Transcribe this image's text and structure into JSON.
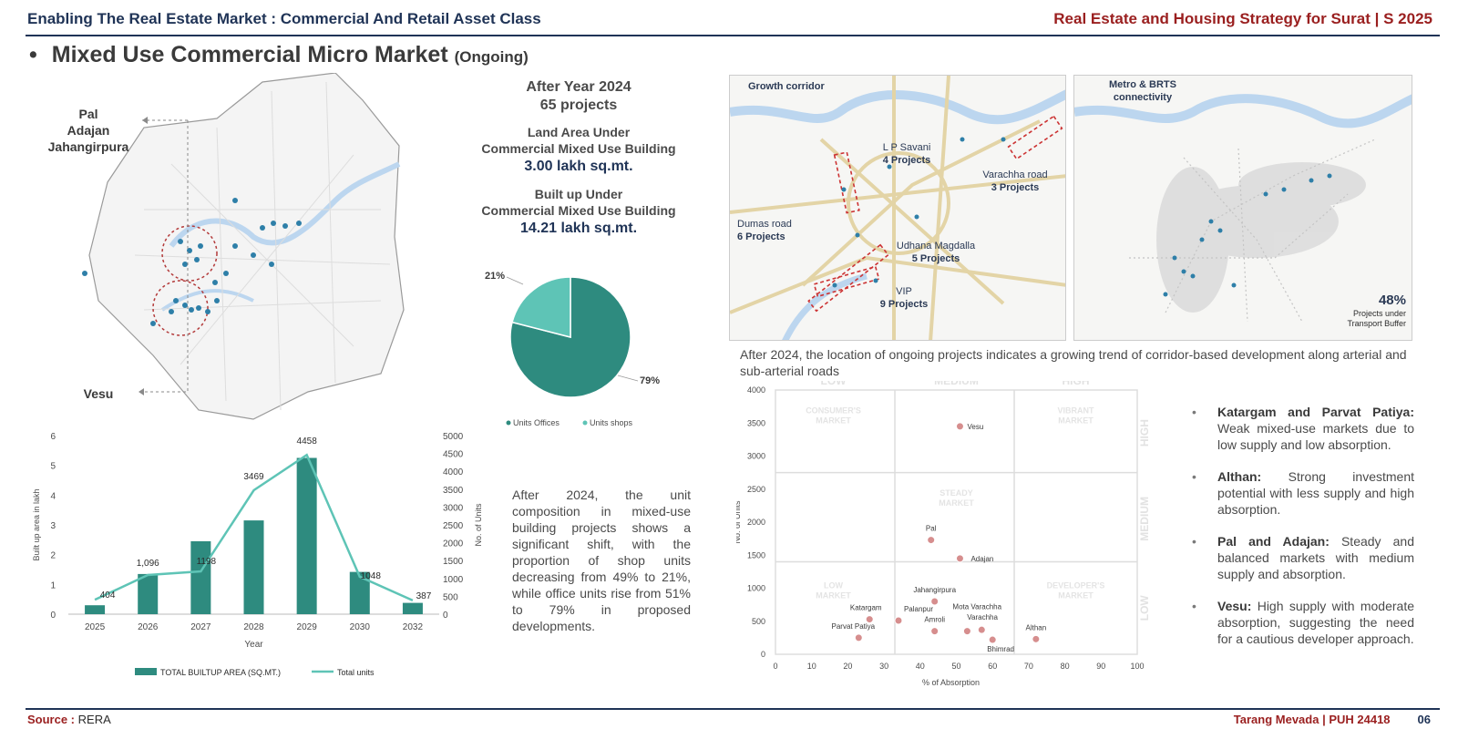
{
  "header": {
    "left_title": "Enabling The Real Estate Market : Commercial And Retail Asset Class",
    "right_title": "Real Estate and Housing Strategy for Surat | S 2025"
  },
  "page_title": {
    "bullet": "•",
    "main": "Mixed Use Commercial Micro Market",
    "sub": "(Ongoing)"
  },
  "map": {
    "label_top": [
      "Pal",
      "Adajan",
      "Jahangirpura"
    ],
    "label_bottom": "Vesu"
  },
  "stats": {
    "heading": "After Year 2024",
    "projects": "65 projects",
    "land_label_1": "Land Area Under",
    "land_label_2": "Commercial Mixed Use Building",
    "land_value": "3.00 lakh sq.mt.",
    "builtup_label_1": "Built up Under",
    "builtup_label_2": "Commercial Mixed Use Building",
    "builtup_value": "14.21 lakh sq.mt."
  },
  "unit_text": "After 2024, the unit composition in mixed-use building projects shows a significant shift, with the proportion of shop units decreasing from 49% to 21%, while office units rise from 51% to 79% in proposed developments.",
  "corridor_map": {
    "title": "Growth corridor",
    "labels": [
      {
        "name": "L P Savani",
        "projects": "4 Projects"
      },
      {
        "name": "Varachha road",
        "projects": "3 Projects"
      },
      {
        "name": "Dumas road",
        "projects": "6 Projects"
      },
      {
        "name": "Udhana Magdalla",
        "projects": "5 Projects"
      },
      {
        "name": "VIP",
        "projects": "9 Projects"
      }
    ]
  },
  "metro_map": {
    "title_1": "Metro & BRTS",
    "title_2": "connectivity",
    "stat_value": "48%",
    "stat_label_1": "Projects under",
    "stat_label_2": "Transport Buffer"
  },
  "corridor_text": "After 2024, the location of ongoing projects indicates a growing trend of corridor-based development along arterial and sub-arterial roads",
  "bullets": [
    {
      "head": "Katargam and Parvat Patiya:",
      "body": "Weak mixed-use markets due to low supply and low absorption."
    },
    {
      "head": "Althan:",
      "body": "Strong investment potential with less supply and high absorption."
    },
    {
      "head": "Pal and Adajan:",
      "body": "Steady and balanced markets with medium supply and absorption."
    },
    {
      "head": "Vesu:",
      "body": "High supply with moderate absorption, suggesting the need for a cautious developer approach."
    }
  ],
  "footer": {
    "source_label": "Source :",
    "source_value": "RERA",
    "author": "Tarang Mevada | PUH 24418",
    "page": "06"
  },
  "colors": {
    "teal_dark": "#2e8b7f",
    "teal_light": "#5ec4b6",
    "navy": "#1f3356",
    "maroon": "#9a1f1f",
    "marker": "#d68e8e"
  },
  "chart_data": [
    {
      "type": "pie",
      "labels": [
        "Units Offices",
        "Units shops"
      ],
      "values": [
        79,
        21
      ],
      "value_labels": [
        "79%",
        "21%"
      ],
      "colors": [
        "#2e8b7f",
        "#5ec4b6"
      ],
      "legend": "bottom"
    },
    {
      "type": "bar",
      "categories": [
        "2025",
        "2026",
        "2027",
        "2028",
        "2029",
        "2030",
        "2032"
      ],
      "series": [
        {
          "name": "TOTAL BUILTUP AREA (SQ.MT.)",
          "type": "bar",
          "axis": "left",
          "values": [
            0.3,
            1.35,
            2.45,
            3.15,
            5.25,
            1.42,
            0.38
          ]
        },
        {
          "name": "Total units",
          "type": "line",
          "axis": "right",
          "values": [
            404,
            1096,
            1198,
            3469,
            4458,
            1048,
            387
          ]
        }
      ],
      "line_labels": [
        "404",
        "1,096",
        "1198",
        "3469",
        "4458",
        "1048",
        "387"
      ],
      "xlabel": "Year",
      "ylabel": "Built up area in lakh",
      "y2label": "No. of Units",
      "ylim": [
        0,
        6
      ],
      "y2lim": [
        0,
        5000
      ],
      "yticks": [
        "0",
        "1",
        "2",
        "3",
        "4",
        "5",
        "6"
      ],
      "y2ticks": [
        "0",
        "500",
        "1000",
        "1500",
        "2000",
        "2500",
        "3000",
        "3500",
        "4000",
        "4500",
        "5000"
      ],
      "legend": "bottom"
    },
    {
      "type": "scatter",
      "xlabel": "% of Absorption",
      "ylabel": "No. of Units",
      "xlim": [
        0,
        100
      ],
      "ylim": [
        0,
        4000
      ],
      "xticks": [
        "0",
        "10",
        "20",
        "30",
        "40",
        "50",
        "60",
        "70",
        "80",
        "90",
        "100"
      ],
      "yticks": [
        "0",
        "500",
        "1000",
        "1500",
        "2000",
        "2500",
        "3000",
        "3500",
        "4000"
      ],
      "points": [
        {
          "label": "Vesu",
          "x": 51,
          "y": 3450
        },
        {
          "label": "Pal",
          "x": 43,
          "y": 1730
        },
        {
          "label": "Adajan",
          "x": 51,
          "y": 1450
        },
        {
          "label": "Jahangirpura",
          "x": 44,
          "y": 800
        },
        {
          "label": "Katargam",
          "x": 26,
          "y": 530
        },
        {
          "label": "Palanpur",
          "x": 34,
          "y": 510
        },
        {
          "label": "Amroli",
          "x": 44,
          "y": 350
        },
        {
          "label": "Mota Varachha",
          "x": 53,
          "y": 350
        },
        {
          "label": "Varachha",
          "x": 57,
          "y": 370
        },
        {
          "label": "Parvat Patiya",
          "x": 23,
          "y": 250
        },
        {
          "label": "Bhimrad",
          "x": 60,
          "y": 220
        },
        {
          "label": "Althan",
          "x": 72,
          "y": 230
        }
      ],
      "quadrant_columns": [
        "LOW",
        "MEDIUM",
        "HIGH"
      ],
      "quadrant_rows": [
        "HIGH",
        "MEDIUM",
        "LOW"
      ],
      "quadrant_names": {
        "consumers": "CONSUMER'S MARKET",
        "vibrant": "VIBRANT MARKET",
        "steady": "STEADY MARKET",
        "low": "LOW MARKET",
        "developers": "DEVELOPER'S MARKET"
      }
    }
  ]
}
